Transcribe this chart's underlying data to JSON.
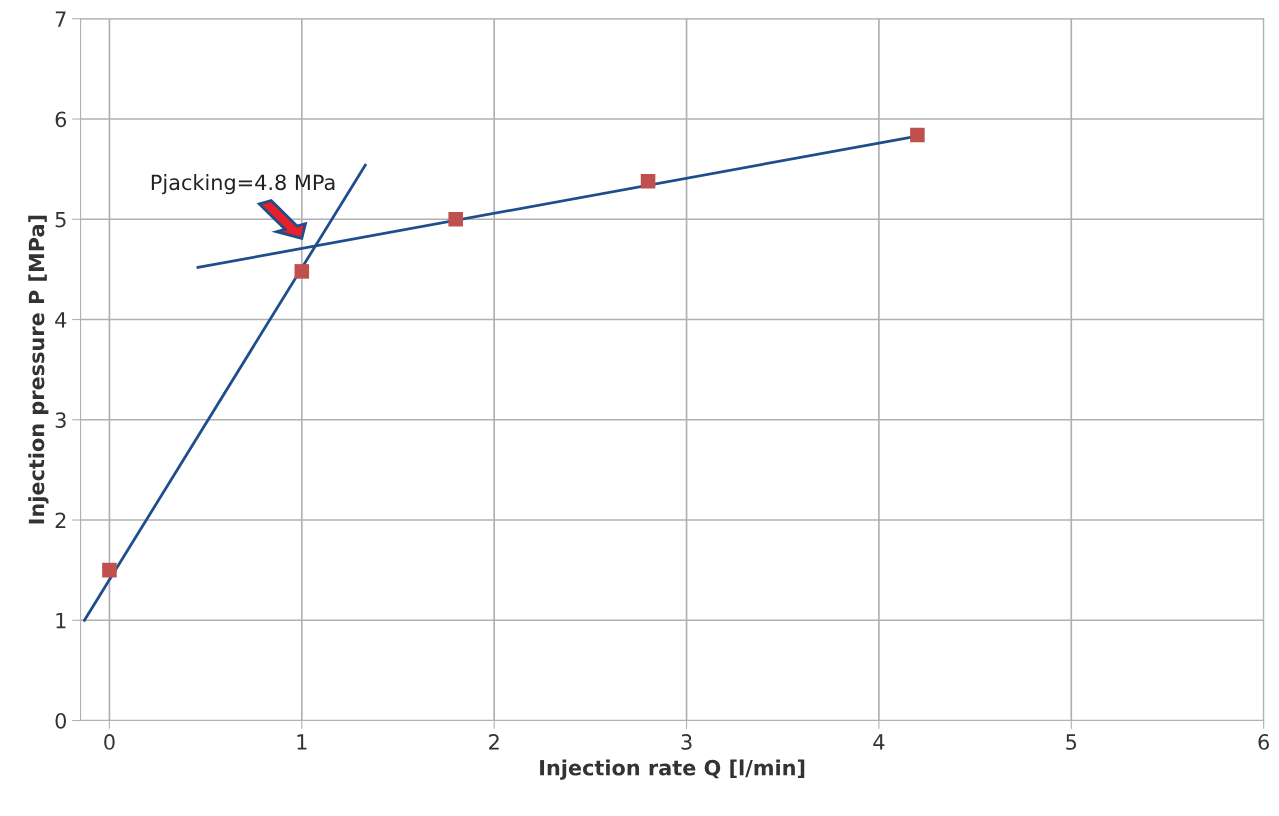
{
  "chart_data": {
    "type": "scatter",
    "xlabel": "Injection rate Q [l/min]",
    "ylabel": "Injection pressure P [MPa]",
    "x": [
      0,
      1,
      1.8,
      2.8,
      4.2
    ],
    "series": [
      {
        "color": "#c0504d",
        "values": [
          1.5,
          4.48,
          5.0,
          5.38,
          5.84
        ],
        "marker": "square"
      },
      {
        "type": "line",
        "color": "#1f4e8c",
        "x": [
          -0.13,
          1.33
        ],
        "values": [
          1.0,
          5.54
        ],
        "marker": "none"
      },
      {
        "type": "line",
        "color": "#1f4e8c",
        "x": [
          0.46,
          4.2
        ],
        "values": [
          4.52,
          5.83
        ],
        "marker": "none"
      }
    ],
    "annotations": [
      {
        "text": "Pjacking=4.8 MPa",
        "x": 1.03,
        "y": 4.75
      }
    ],
    "xlim": [
      -0.15,
      6
    ],
    "ylim": [
      0,
      7
    ],
    "xticks": [
      0,
      1,
      2,
      3,
      4,
      5,
      6
    ],
    "yticks": [
      0,
      1,
      2,
      3,
      4,
      5,
      6,
      7
    ],
    "grid": true,
    "legend": false
  }
}
